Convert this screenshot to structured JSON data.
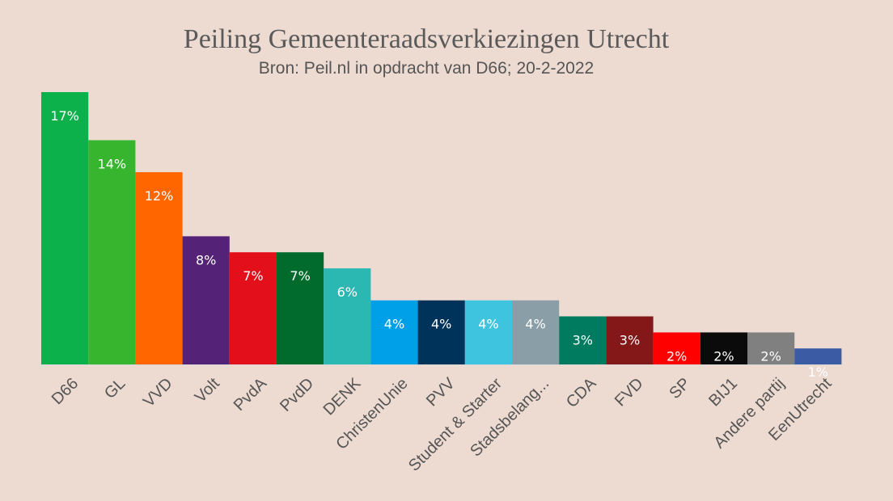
{
  "chart_data": {
    "type": "bar",
    "title": "Peiling Gemeenteraadsverkiezingen Utrecht",
    "subtitle": "Bron: Peil.nl in opdracht van D66; 20-2-2022",
    "categories": [
      "D66",
      "GL",
      "VVD",
      "Volt",
      "PvdA",
      "PvdD",
      "DENK",
      "ChristenUnie",
      "PVV",
      "Student & Starter",
      "Stadsbelang...",
      "CDA",
      "FVD",
      "SP",
      "BIJ1",
      "Andere partij",
      "EenUtrecht"
    ],
    "values": [
      17,
      14,
      12,
      8,
      7,
      7,
      6,
      4,
      4,
      4,
      4,
      3,
      3,
      2,
      2,
      2,
      1
    ],
    "data_labels": [
      "17%",
      "14%",
      "12%",
      "8%",
      "7%",
      "7%",
      "6%",
      "4%",
      "4%",
      "4%",
      "4%",
      "3%",
      "3%",
      "2%",
      "2%",
      "2%",
      "1%"
    ],
    "colors": [
      "#0db14b",
      "#37b52e",
      "#ff6600",
      "#542378",
      "#e3101c",
      "#006b2d",
      "#2cb8b2",
      "#00a0e9",
      "#003359",
      "#3ec4de",
      "#8a9ea8",
      "#007b5f",
      "#841818",
      "#ff0000",
      "#0b0b0b",
      "#808080",
      "#3b5ba5"
    ],
    "ylim": [
      0,
      17
    ],
    "grid": false,
    "legend": "none"
  }
}
